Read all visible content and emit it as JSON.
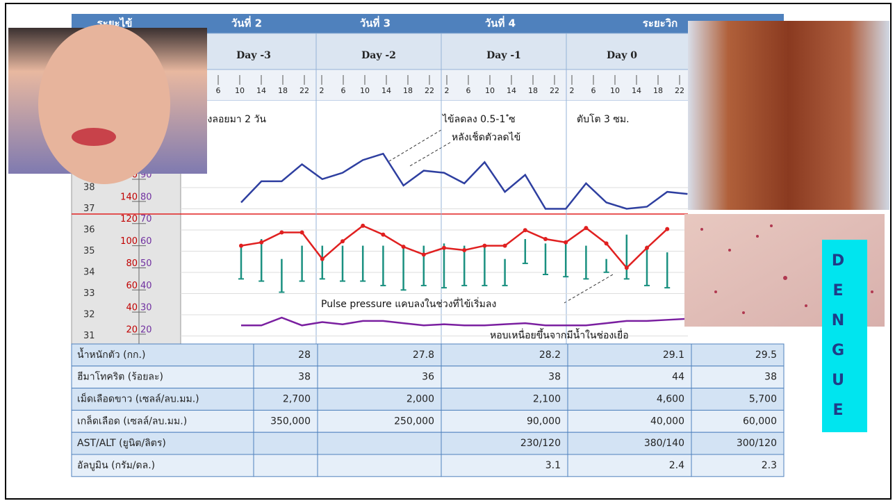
{
  "header": {
    "row1": [
      "ระยะไข้",
      "วันที่ 2",
      "วันที่ 3",
      "วันที่ 4",
      "ระยะวิก"
    ],
    "row2": [
      "Day -3",
      "Day -2",
      "Day -1",
      "Day 0"
    ],
    "hours": [
      "2",
      "6",
      "10",
      "14",
      "18",
      "22"
    ]
  },
  "axes": {
    "temperature": [
      38,
      37,
      36,
      35,
      34,
      33,
      32,
      31
    ],
    "pulse": [
      160,
      140,
      120,
      100,
      80,
      60,
      40,
      20
    ],
    "bp": [
      90,
      80,
      70,
      60,
      50,
      40,
      30,
      20
    ]
  },
  "annotations": [
    "สูงลอยมา 2 วัน",
    "ไข้ลดลง 0.5-1 ํซ",
    "หลังเช็ดตัวลดไข้",
    "ตับโต 3 ซม.",
    "Pulse pressure แคบลงในช่วงที่ไข้เริ่มลง",
    "หอบเหนื่อยขึ้นจากมีน้ำในช่องเยื่อ"
  ],
  "series": {
    "temperature": [
      37.3,
      38.3,
      38.3,
      39.1,
      38.4,
      38.7,
      39.3,
      39.6,
      38.1,
      38.8,
      38.7,
      38.2,
      39.2,
      37.8,
      38.6,
      37.0,
      37.0,
      38.2,
      37.3,
      37.0,
      37.1,
      37.8,
      37.7
    ],
    "pulse": [
      100,
      103,
      112,
      112,
      88,
      104,
      118,
      110,
      99,
      92,
      98,
      96,
      100,
      100,
      114,
      106,
      103,
      116,
      102,
      80,
      98,
      115
    ],
    "bp": [
      24,
      24,
      27.5,
      24,
      25.5,
      24.5,
      26,
      26,
      25,
      24,
      24.5,
      24,
      24,
      24.5,
      25,
      24,
      24,
      24,
      25,
      26,
      26,
      26.5,
      27
    ],
    "pulse_pressure": [
      [
        60,
        45
      ],
      [
        63,
        44
      ],
      [
        54,
        39
      ],
      [
        60,
        44
      ],
      [
        60,
        45
      ],
      [
        60,
        44
      ],
      [
        60,
        44
      ],
      [
        60,
        42
      ],
      [
        60,
        40
      ],
      [
        60,
        42
      ],
      [
        61,
        41
      ],
      [
        60,
        42
      ],
      [
        60,
        42
      ],
      [
        54,
        42
      ],
      [
        63,
        52
      ],
      [
        61,
        47
      ],
      [
        61,
        46
      ],
      [
        60,
        45
      ],
      [
        54,
        48
      ],
      [
        65,
        45
      ],
      [
        60,
        42
      ],
      [
        57,
        41
      ]
    ]
  },
  "table": {
    "rows": [
      [
        "น้ำหนักตัว (กก.)",
        "28",
        "27.8",
        "28.2",
        "29.1",
        "29.5"
      ],
      [
        "ฮีมาโทคริต (ร้อยละ)",
        "38",
        "36",
        "38",
        "44",
        "38"
      ],
      [
        "เม็ดเลือดขาว (เซลล์/ลบ.มม.)",
        "2,700",
        "2,000",
        "2,100",
        "4,600",
        "5,700"
      ],
      [
        "เกล็ดเลือด (เซลล์/ลบ.มม.)",
        "350,000",
        "250,000",
        "90,000",
        "40,000",
        "60,000"
      ],
      [
        "AST/ALT (ยูนิต/ลิตร)",
        "",
        "",
        "230/120",
        "380/140",
        "300/120"
      ],
      [
        "อัลบูมิน (กรัม/ดล.)",
        "",
        "",
        "3.1",
        "2.4",
        "2.3"
      ]
    ]
  },
  "banner": {
    "letters": [
      "D",
      "E",
      "N",
      "G",
      "U",
      "E"
    ]
  }
}
